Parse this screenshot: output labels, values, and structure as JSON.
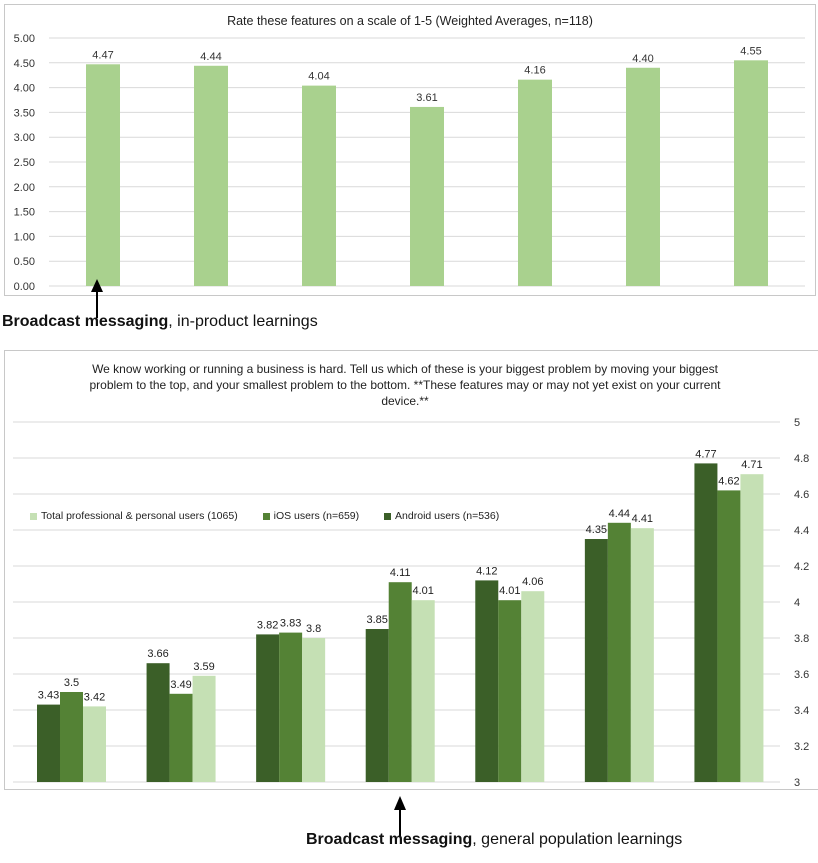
{
  "chart_data": [
    {
      "type": "bar",
      "title": "Rate these features on a scale of 1-5 (Weighted Averages, n=118)",
      "categories": [
        "",
        "",
        "",
        "",
        "",
        "",
        ""
      ],
      "values": [
        4.47,
        4.44,
        4.04,
        3.61,
        4.16,
        4.4,
        4.55
      ],
      "data_labels": [
        "4.47",
        "4.44",
        "4.04",
        "3.61",
        "4.16",
        "4.40",
        "4.55"
      ],
      "ylim": [
        0,
        5
      ],
      "yticks": [
        "0.00",
        "0.50",
        "1.00",
        "1.50",
        "2.00",
        "2.50",
        "3.00",
        "3.50",
        "4.00",
        "4.50",
        "5.00"
      ],
      "xlabel": "",
      "ylabel": "",
      "grid": true,
      "bar_color": "#a9d18e"
    },
    {
      "type": "bar",
      "title": "We know working or running a business is hard. Tell us which of these is your biggest problem by moving your biggest problem to the top, and your smallest problem to the bottom. **These features may or may not yet exist on your current device.**",
      "categories": [
        "",
        "",
        "",
        "",
        "",
        "",
        ""
      ],
      "series": [
        {
          "name": "Android users (n=536)",
          "values": [
            3.43,
            3.66,
            3.82,
            3.85,
            4.12,
            4.35,
            4.77
          ],
          "labels": [
            "3.43",
            "3.66",
            "3.82",
            "3.85",
            "4.12",
            "4.35",
            "4.77"
          ],
          "color": "#3b5f28"
        },
        {
          "name": "iOS users (n=659)",
          "values": [
            3.5,
            3.49,
            3.83,
            4.11,
            4.01,
            4.44,
            4.62
          ],
          "labels": [
            "3.5",
            "3.49",
            "3.83",
            "4.11",
            "4.01",
            "4.44",
            "4.62"
          ],
          "color": "#548235"
        },
        {
          "name": "Total professional & personal users (1065)",
          "values": [
            3.42,
            3.59,
            3.8,
            4.01,
            4.06,
            4.41,
            4.71
          ],
          "labels": [
            "3.42",
            "3.59",
            "3.8",
            "4.01",
            "4.06",
            "4.41",
            "4.71"
          ],
          "color": "#c5e0b4"
        }
      ],
      "legend_order": [
        2,
        1,
        0
      ],
      "ylim": [
        3,
        5
      ],
      "yticks": [
        "3",
        "3.2",
        "3.4",
        "3.6",
        "3.8",
        "4",
        "4.2",
        "4.4",
        "4.6",
        "4.8",
        "5"
      ],
      "yaxis_side": "right",
      "legend_position": "left",
      "xlabel": "",
      "ylabel": "",
      "grid": true
    }
  ],
  "annotations": {
    "caption1": {
      "bold": "Broadcast messaging",
      "rest": ", in-product learnings"
    },
    "caption2": {
      "bold": "Broadcast messaging",
      "rest": ", general population learnings"
    }
  }
}
